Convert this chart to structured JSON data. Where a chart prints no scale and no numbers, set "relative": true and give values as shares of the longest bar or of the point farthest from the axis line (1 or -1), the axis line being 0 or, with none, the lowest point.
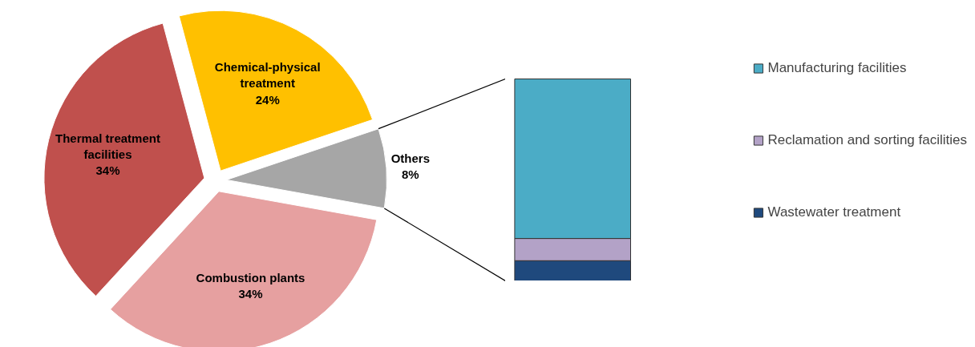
{
  "chart_data": [
    {
      "type": "pie",
      "categories": [
        "Chemical-physical treatment",
        "Others",
        "Combustion plants",
        "Thermal treatment facilities"
      ],
      "values": [
        24,
        8,
        34,
        34
      ],
      "colors": [
        "#ffc000",
        "#a6a6a6",
        "#e6a0a0",
        "#c0504d"
      ],
      "value_labels": [
        "24%",
        "8%",
        "34%",
        "34%"
      ]
    },
    {
      "type": "bar",
      "stacked": true,
      "relative": true,
      "categories": [
        null
      ],
      "legend": "right",
      "series": [
        {
          "name": "Wastewater treatment",
          "color": "#1f497d",
          "values": [
            0.1
          ]
        },
        {
          "name": "Reclamation and sorting facilities",
          "color": "#b3a2c7",
          "values": [
            0.11
          ]
        },
        {
          "name": "Manufacturing facilities",
          "color": "#4bacc6",
          "values": [
            0.79
          ]
        }
      ]
    }
  ]
}
